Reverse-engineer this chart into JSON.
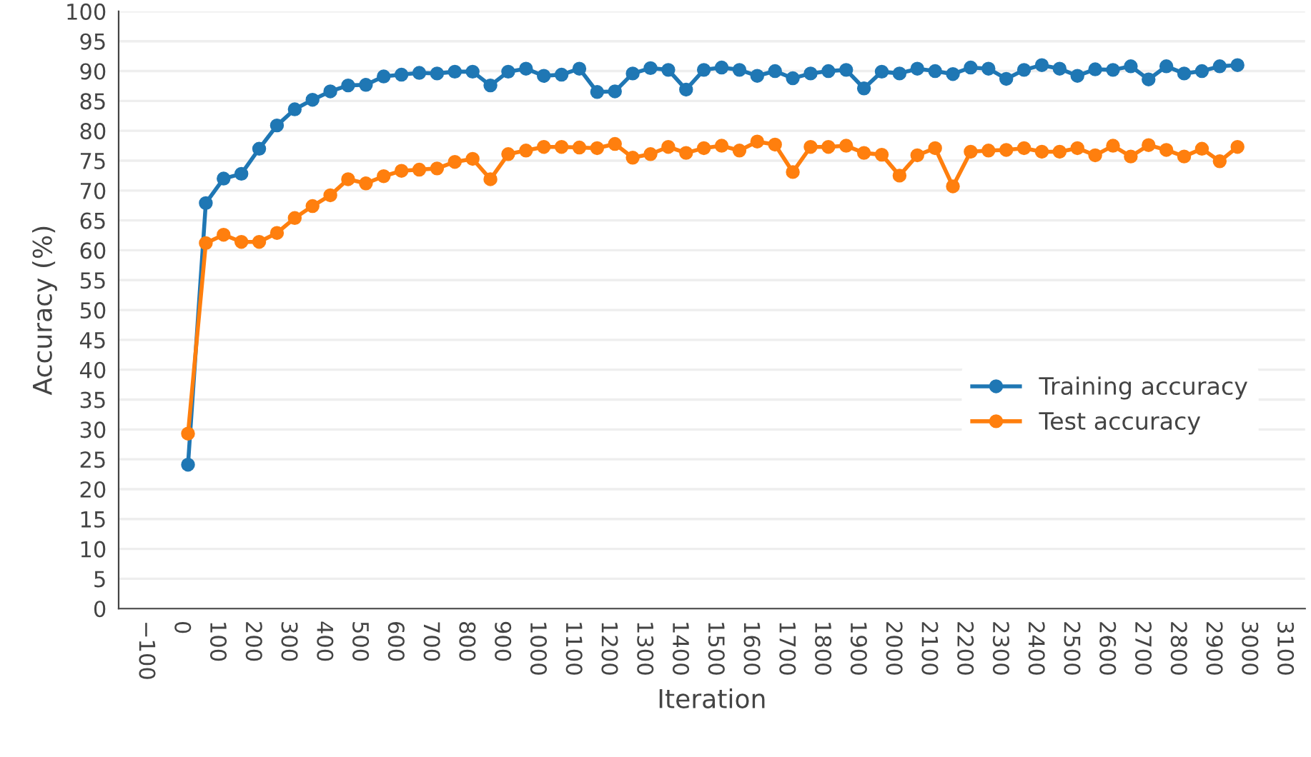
{
  "chart_data": {
    "type": "line",
    "xlabel": "Iteration",
    "ylabel": "Accuracy (%)",
    "x": [
      20,
      70,
      120,
      170,
      220,
      270,
      320,
      370,
      420,
      470,
      520,
      570,
      620,
      670,
      720,
      770,
      820,
      870,
      920,
      970,
      1020,
      1070,
      1120,
      1170,
      1220,
      1270,
      1320,
      1370,
      1420,
      1470,
      1520,
      1570,
      1620,
      1670,
      1720,
      1770,
      1820,
      1870,
      1920,
      1970,
      2020,
      2070,
      2120,
      2170,
      2220,
      2270,
      2320,
      2370,
      2420,
      2470,
      2520,
      2570,
      2620,
      2670,
      2720,
      2770,
      2820,
      2870,
      2920,
      2970
    ],
    "series": [
      {
        "name": "Training accuracy",
        "color": "#1f77b4",
        "values": [
          24.1,
          67.9,
          72.0,
          72.8,
          77.0,
          80.9,
          83.6,
          85.2,
          86.6,
          87.6,
          87.7,
          89.1,
          89.4,
          89.7,
          89.6,
          89.9,
          89.9,
          87.6,
          89.9,
          90.4,
          89.2,
          89.4,
          90.4,
          86.5,
          86.6,
          89.6,
          90.5,
          90.2,
          86.9,
          90.2,
          90.6,
          90.2,
          89.2,
          90.0,
          88.8,
          89.6,
          90.0,
          90.2,
          87.1,
          89.9,
          89.6,
          90.4,
          90.0,
          89.5,
          90.6,
          90.4,
          88.7,
          90.2,
          91.0,
          90.4,
          89.2,
          90.3,
          90.2,
          90.8,
          88.6,
          90.8,
          89.6,
          90.0,
          90.8,
          91.0
        ]
      },
      {
        "name": "Test accuracy",
        "color": "#ff7f0e",
        "values": [
          29.3,
          61.2,
          62.6,
          61.4,
          61.4,
          62.9,
          65.4,
          67.4,
          69.2,
          71.9,
          71.2,
          72.4,
          73.3,
          73.5,
          73.7,
          74.8,
          75.3,
          71.9,
          76.1,
          76.7,
          77.3,
          77.3,
          77.2,
          77.1,
          77.8,
          75.5,
          76.1,
          77.3,
          76.3,
          77.1,
          77.5,
          76.7,
          78.2,
          77.7,
          73.1,
          77.3,
          77.3,
          77.5,
          76.3,
          76.0,
          72.5,
          75.9,
          77.1,
          70.7,
          76.5,
          76.7,
          76.8,
          77.1,
          76.5,
          76.5,
          77.1,
          75.9,
          77.5,
          75.7,
          77.6,
          76.8,
          75.7,
          77.0,
          74.9,
          77.3
        ]
      }
    ],
    "xlim": [
      -175,
      3160
    ],
    "xticks": [
      {
        "value": -100,
        "label": "−100"
      },
      0,
      100,
      200,
      300,
      400,
      500,
      600,
      700,
      800,
      900,
      1000,
      1100,
      1200,
      1300,
      1400,
      1500,
      1600,
      1700,
      1800,
      1900,
      2000,
      2100,
      2200,
      2300,
      2400,
      2500,
      2600,
      2700,
      2800,
      2900,
      3000,
      3100
    ],
    "ylim": [
      0,
      100
    ],
    "yticks": [
      0,
      5,
      10,
      15,
      20,
      25,
      30,
      35,
      40,
      45,
      50,
      55,
      60,
      65,
      70,
      75,
      80,
      85,
      90,
      95,
      100
    ],
    "grid": "y",
    "legend": "center right",
    "marker": "circle",
    "line_style": "solid"
  }
}
